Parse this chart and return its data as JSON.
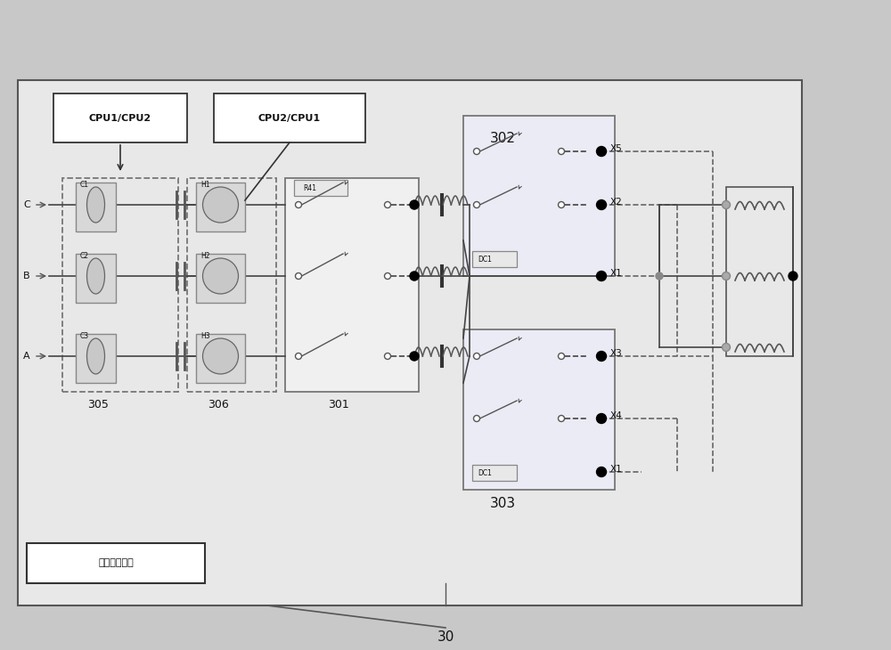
{
  "bg_color": "#c8c8c8",
  "outer_bg": "#e8e8e8",
  "box_ec": "#555555",
  "dash_ec": "#666666",
  "line_color": "#444444",
  "text_color": "#111111",
  "labels": {
    "cpu1cpu2": "CPU1/CPU2",
    "cpu2cpu1": "CPU2/CPU1",
    "label_305": "305",
    "label_306": "306",
    "label_301": "301",
    "label_302": "302",
    "label_303": "303",
    "label_30": "30",
    "label_dc1": "DC1",
    "label_r41": "R41",
    "label_c1": "C1",
    "label_c2": "C2",
    "label_c3": "C3",
    "label_h1": "H1",
    "label_h2": "H2",
    "label_h3": "H3",
    "label_x1": "X1",
    "label_x2": "X2",
    "label_x3": "X3",
    "label_x4": "X4",
    "label_x5": "X5",
    "label_a": "A",
    "label_b": "B",
    "label_c": "C",
    "label_action": "动作控制单元"
  }
}
